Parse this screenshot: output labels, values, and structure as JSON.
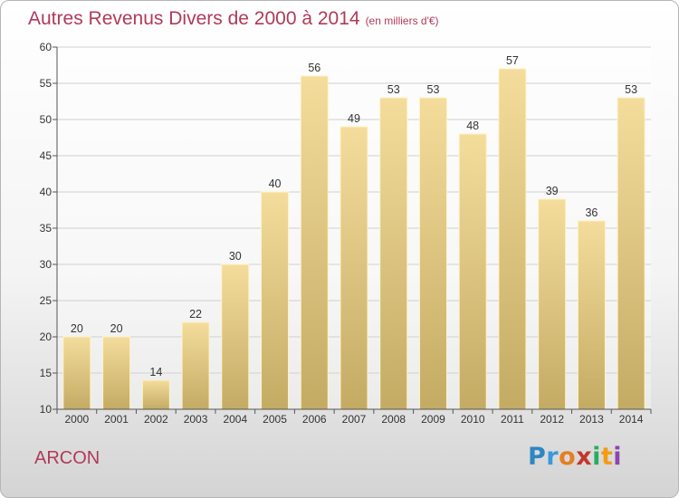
{
  "title": "Autres Revenus Divers de 2000 à 2014",
  "unit": "(en milliers d'€)",
  "commune": "ARCON",
  "logo": {
    "letters": [
      "P",
      "r",
      "o",
      "x",
      "i",
      "t",
      "i"
    ],
    "colors": [
      "#2e86c1",
      "#3a9ad9",
      "#e67e22",
      "#c0392b",
      "#27ae60",
      "#f39c12",
      "#8e44ad"
    ]
  },
  "colors": {
    "accent": "#b03a5a",
    "bar_light": "#f4dc9c",
    "bar_dark": "#c4ab64",
    "bar_edge": "#fff3c4"
  },
  "chart_data": {
    "type": "bar",
    "title": "Autres Revenus Divers de 2000 à 2014",
    "categories": [
      "2000",
      "2001",
      "2002",
      "2003",
      "2004",
      "2005",
      "2006",
      "2007",
      "2008",
      "2009",
      "2010",
      "2011",
      "2012",
      "2013",
      "2014"
    ],
    "values": [
      20,
      20,
      14,
      22,
      30,
      40,
      56,
      49,
      53,
      53,
      48,
      57,
      39,
      36,
      53
    ],
    "ylim": [
      10,
      60
    ],
    "yticks": [
      10,
      15,
      20,
      25,
      30,
      35,
      40,
      45,
      50,
      55,
      60
    ],
    "grid": true,
    "xlabel": "",
    "ylabel": ""
  }
}
